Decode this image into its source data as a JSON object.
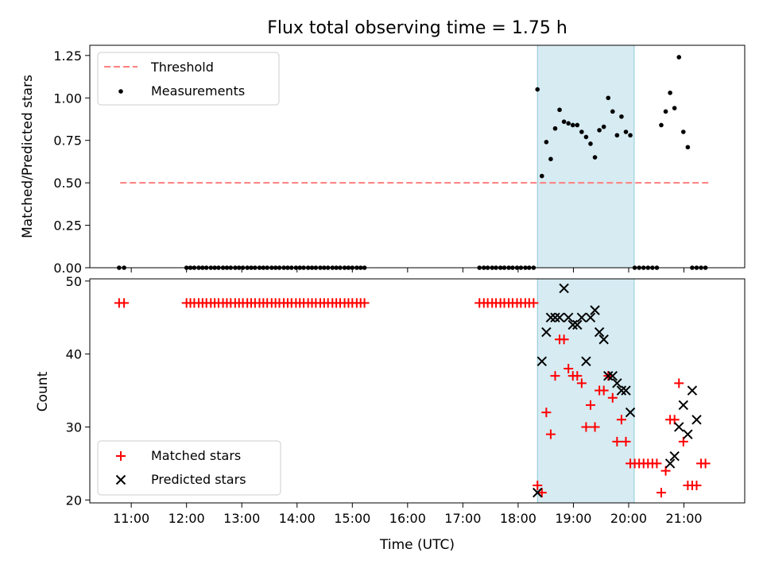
{
  "chart_data": [
    {
      "type": "scatter",
      "title": "Flux total observing time = 1.75 h",
      "xlabel": "",
      "ylabel": "Matched/Predicted stars",
      "xlim": [
        10.25,
        22.1
      ],
      "ylim": [
        0,
        1.31
      ],
      "yticks": [
        0.0,
        0.25,
        0.5,
        0.75,
        1.0,
        1.25
      ],
      "ytick_labels": [
        "0.00",
        "0.25",
        "0.50",
        "0.75",
        "1.00",
        "1.25"
      ],
      "legend": [
        "Threshold",
        "Measurements"
      ],
      "legend_position": "upper-left",
      "shaded_interval": [
        18.35,
        20.1
      ],
      "threshold": {
        "value": 0.5,
        "x_start": 10.8,
        "x_end": 21.45,
        "color": "#ff7f7f"
      },
      "series": [
        {
          "name": "Measurements",
          "color": "#000000",
          "x": [
            10.78,
            10.87,
            12.0,
            12.07,
            12.14,
            12.22,
            12.29,
            12.36,
            12.44,
            12.51,
            12.58,
            12.66,
            12.73,
            12.8,
            12.88,
            12.95,
            13.02,
            13.1,
            13.17,
            13.24,
            13.32,
            13.39,
            13.46,
            13.54,
            13.61,
            13.68,
            13.76,
            13.83,
            13.9,
            13.98,
            14.05,
            14.12,
            14.2,
            14.27,
            14.34,
            14.42,
            14.49,
            14.56,
            14.64,
            14.71,
            14.78,
            14.86,
            14.93,
            15.0,
            15.08,
            15.15,
            15.22,
            17.3,
            17.38,
            17.45,
            17.53,
            17.6,
            17.68,
            17.75,
            17.83,
            17.9,
            17.98,
            18.05,
            18.13,
            18.2,
            18.28,
            18.35,
            18.43,
            18.51,
            18.59,
            18.67,
            18.75,
            18.83,
            18.91,
            18.99,
            19.07,
            19.15,
            19.23,
            19.31,
            19.39,
            19.47,
            19.55,
            19.63,
            19.71,
            19.79,
            19.87,
            19.95,
            20.03,
            20.11,
            20.19,
            20.27,
            20.35,
            20.43,
            20.51,
            20.59,
            20.67,
            20.75,
            20.83,
            20.91,
            20.99,
            21.07,
            21.15,
            21.23,
            21.31,
            21.39
          ],
          "y": [
            0,
            0,
            0,
            0,
            0,
            0,
            0,
            0,
            0,
            0,
            0,
            0,
            0,
            0,
            0,
            0,
            0,
            0,
            0,
            0,
            0,
            0,
            0,
            0,
            0,
            0,
            0,
            0,
            0,
            0,
            0,
            0,
            0,
            0,
            0,
            0,
            0,
            0,
            0,
            0,
            0,
            0,
            0,
            0,
            0,
            0,
            0,
            0,
            0,
            0,
            0,
            0,
            0,
            0,
            0,
            0,
            0,
            0,
            0,
            0,
            0,
            1.05,
            0.54,
            0.74,
            0.64,
            0.82,
            0.93,
            0.86,
            0.85,
            0.84,
            0.84,
            0.8,
            0.77,
            0.73,
            0.65,
            0.81,
            0.83,
            1.0,
            0.92,
            0.78,
            0.89,
            0.8,
            0.78,
            0,
            0,
            0,
            0,
            0,
            0,
            0.84,
            0.92,
            1.03,
            0.94,
            1.24,
            0.8,
            0.71,
            0,
            0,
            0,
            0
          ]
        }
      ]
    },
    {
      "type": "scatter",
      "title": "",
      "xlabel": "Time (UTC)",
      "ylabel": "Count",
      "xlim": [
        10.25,
        22.1
      ],
      "ylim": [
        19.6,
        50.3
      ],
      "yticks": [
        20,
        30,
        40,
        50
      ],
      "ytick_labels": [
        "20",
        "30",
        "40",
        "50"
      ],
      "xticks": [
        11,
        12,
        13,
        14,
        15,
        16,
        17,
        18,
        19,
        20,
        21
      ],
      "xtick_labels": [
        "11:00",
        "12:00",
        "13:00",
        "14:00",
        "15:00",
        "16:00",
        "17:00",
        "18:00",
        "19:00",
        "20:00",
        "21:00"
      ],
      "legend": [
        "Matched stars",
        "Predicted stars"
      ],
      "legend_position": "lower-left",
      "shaded_interval": [
        18.35,
        20.1
      ],
      "series": [
        {
          "name": "Matched stars",
          "marker": "plus",
          "color": "#ff0000",
          "x": [
            10.78,
            10.87,
            12.0,
            12.07,
            12.14,
            12.22,
            12.29,
            12.36,
            12.44,
            12.51,
            12.58,
            12.66,
            12.73,
            12.8,
            12.88,
            12.95,
            13.02,
            13.1,
            13.17,
            13.24,
            13.32,
            13.39,
            13.46,
            13.54,
            13.61,
            13.68,
            13.76,
            13.83,
            13.9,
            13.98,
            14.05,
            14.12,
            14.2,
            14.27,
            14.34,
            14.42,
            14.49,
            14.56,
            14.64,
            14.71,
            14.78,
            14.86,
            14.93,
            15.0,
            15.08,
            15.15,
            15.22,
            17.3,
            17.38,
            17.45,
            17.53,
            17.6,
            17.68,
            17.75,
            17.83,
            17.9,
            17.98,
            18.05,
            18.13,
            18.2,
            18.28,
            18.35,
            18.43,
            18.51,
            18.59,
            18.67,
            18.75,
            18.83,
            18.91,
            18.99,
            19.07,
            19.15,
            19.23,
            19.31,
            19.39,
            19.47,
            19.55,
            19.63,
            19.71,
            19.79,
            19.87,
            19.95,
            20.03,
            20.11,
            20.19,
            20.27,
            20.35,
            20.43,
            20.51,
            20.59,
            20.67,
            20.75,
            20.83,
            20.91,
            20.99,
            21.07,
            21.15,
            21.23,
            21.31,
            21.39
          ],
          "y": [
            47,
            47,
            47,
            47,
            47,
            47,
            47,
            47,
            47,
            47,
            47,
            47,
            47,
            47,
            47,
            47,
            47,
            47,
            47,
            47,
            47,
            47,
            47,
            47,
            47,
            47,
            47,
            47,
            47,
            47,
            47,
            47,
            47,
            47,
            47,
            47,
            47,
            47,
            47,
            47,
            47,
            47,
            47,
            47,
            47,
            47,
            47,
            47,
            47,
            47,
            47,
            47,
            47,
            47,
            47,
            47,
            47,
            47,
            47,
            47,
            47,
            22,
            21,
            32,
            29,
            37,
            42,
            42,
            38,
            37,
            37,
            36,
            30,
            33,
            30,
            35,
            35,
            37,
            34,
            28,
            31,
            28,
            25,
            25,
            25,
            25,
            25,
            25,
            25,
            21,
            24,
            31,
            31,
            36,
            28,
            22,
            22,
            22,
            25,
            25
          ]
        },
        {
          "name": "Predicted stars",
          "marker": "x",
          "color": "#000000",
          "x": [
            18.35,
            18.43,
            18.51,
            18.59,
            18.67,
            18.75,
            18.83,
            18.91,
            18.99,
            19.07,
            19.15,
            19.23,
            19.31,
            19.39,
            19.47,
            19.55,
            19.63,
            19.71,
            19.79,
            19.87,
            19.95,
            20.03,
            20.75,
            20.83,
            20.91,
            20.99,
            21.07,
            21.15,
            21.23
          ],
          "y": [
            21,
            39,
            43,
            45,
            45,
            45,
            49,
            45,
            44,
            44,
            45,
            39,
            45,
            46,
            43,
            42,
            37,
            37,
            36,
            35,
            35,
            32,
            25,
            26,
            30,
            33,
            29,
            35,
            31
          ]
        }
      ]
    }
  ]
}
